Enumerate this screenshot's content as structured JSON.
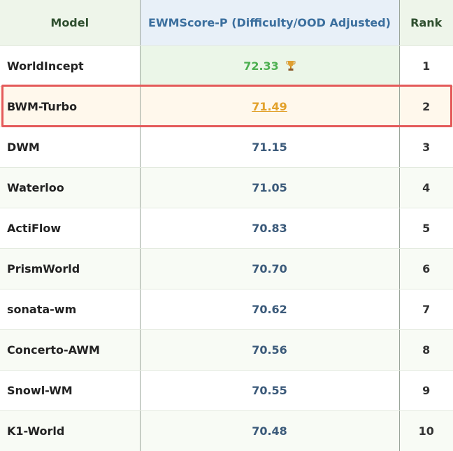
{
  "table": {
    "header": [
      "Model",
      "EWMScore-P (Difficulty/OOD Adjusted)",
      "Rank"
    ],
    "rows": [
      [
        "WorldIncept",
        "72.33",
        1
      ],
      [
        "BWM-Turbo",
        "71.49",
        2
      ],
      [
        "DWM",
        "71.15",
        3
      ],
      [
        "Waterloo",
        "71.05",
        4
      ],
      [
        "ActiFlow",
        "70.83",
        5
      ],
      [
        "PrismWorld",
        "70.70",
        6
      ],
      [
        "sonata-wm",
        "70.62",
        7
      ],
      [
        "Concerto-AWM",
        "70.56",
        8
      ],
      [
        "Snowl-WM",
        "70.55",
        9
      ],
      [
        "K1-World",
        "70.48",
        10
      ]
    ]
  }
}
